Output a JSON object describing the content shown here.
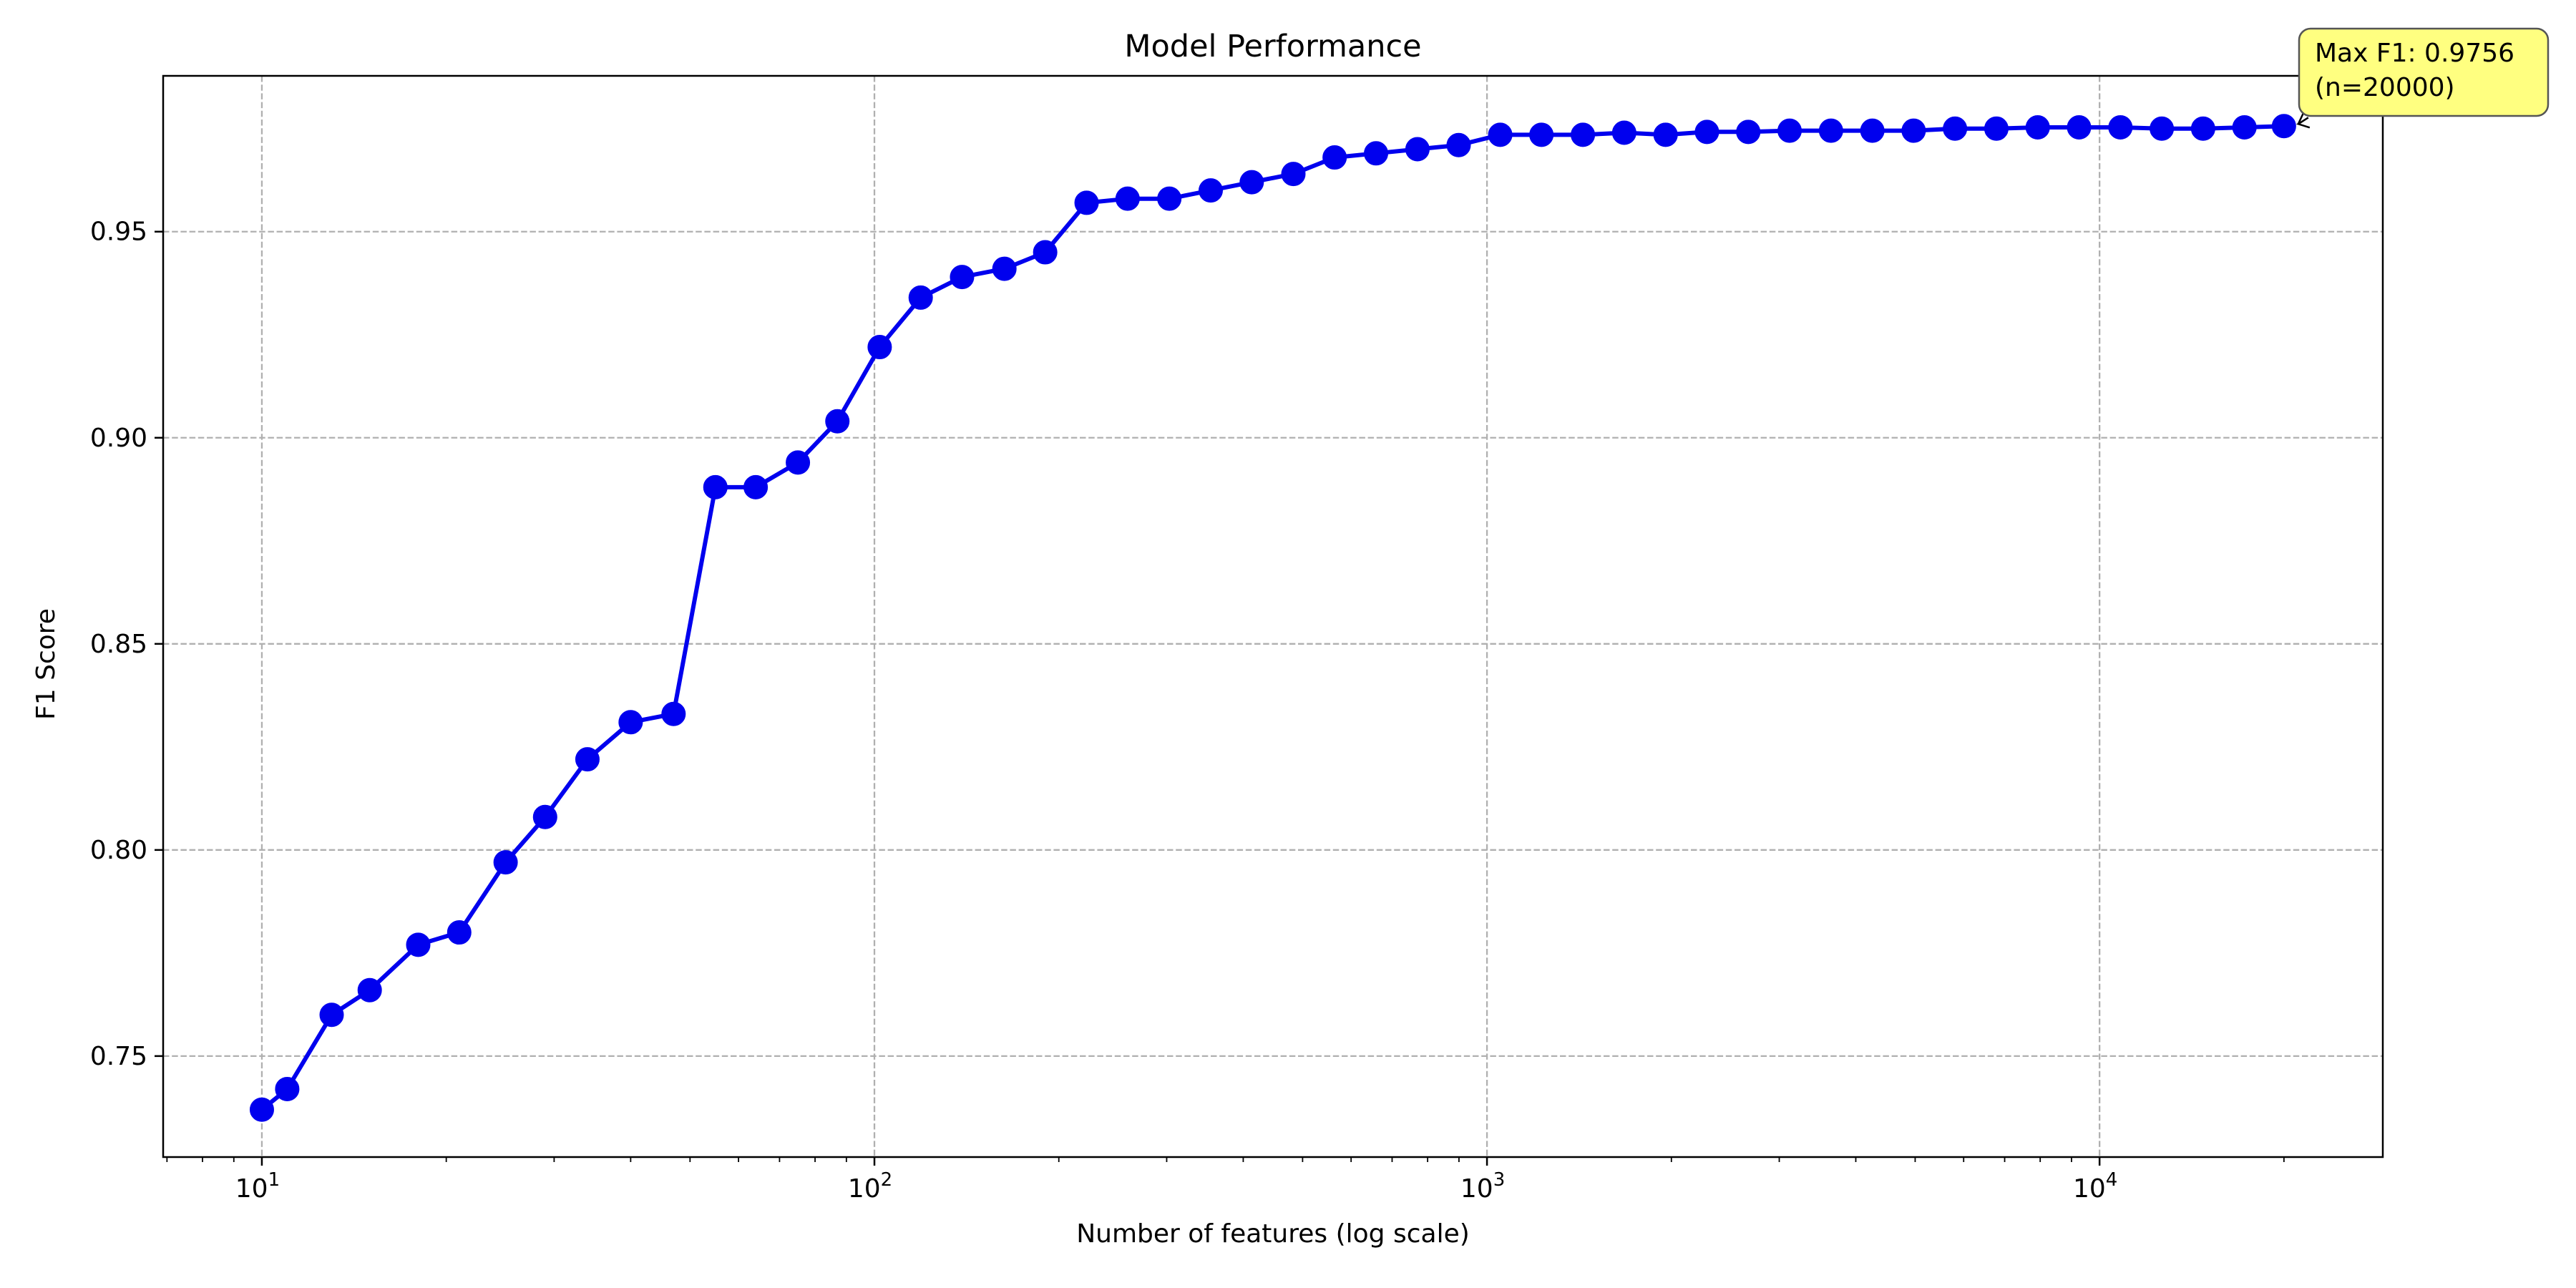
{
  "chart_data": {
    "type": "line",
    "title": "Model Performance",
    "xlabel": "Number of features (log scale)",
    "ylabel": "F1 Score",
    "x_scale": "log",
    "xlim": [
      6.9,
      29000
    ],
    "ylim": [
      0.7255,
      0.9878
    ],
    "grid": true,
    "y_ticks": [
      "0.75",
      "0.80",
      "0.85",
      "0.90",
      "0.95"
    ],
    "x_ticks": [
      {
        "base": "10",
        "exp": "1"
      },
      {
        "base": "10",
        "exp": "2"
      },
      {
        "base": "10",
        "exp": "3"
      },
      {
        "base": "10",
        "exp": "4"
      }
    ],
    "series": [
      {
        "color": "#0000ee",
        "marker": "circle",
        "x": [
          10,
          11,
          13,
          15,
          18,
          21,
          25,
          29,
          34,
          40,
          47,
          55,
          64,
          75,
          87,
          102,
          119,
          139,
          163,
          190,
          222,
          259,
          303,
          354,
          413,
          483,
          564,
          659,
          770,
          899,
          1051,
          1227,
          1434,
          1675,
          1957,
          2286,
          2670,
          3119,
          3644,
          4257,
          4972,
          5808,
          6785,
          7926,
          9259,
          10816,
          12635,
          14759,
          17241,
          20000
        ],
        "y": [
          0.737,
          0.742,
          0.76,
          0.766,
          0.777,
          0.78,
          0.797,
          0.808,
          0.822,
          0.831,
          0.833,
          0.888,
          0.888,
          0.894,
          0.904,
          0.922,
          0.934,
          0.939,
          0.941,
          0.945,
          0.957,
          0.958,
          0.958,
          0.96,
          0.962,
          0.964,
          0.968,
          0.969,
          0.97,
          0.971,
          0.9735,
          0.9735,
          0.9735,
          0.974,
          0.9735,
          0.9742,
          0.9742,
          0.9745,
          0.9745,
          0.9745,
          0.9745,
          0.975,
          0.975,
          0.9753,
          0.9753,
          0.9753,
          0.975,
          0.975,
          0.9753,
          0.9756
        ]
      }
    ],
    "annotation": {
      "text_line1": "Max F1: 0.9756",
      "text_line2": "(n=20000)",
      "x": 20000,
      "y": 0.9756,
      "box_color": "#ffff80"
    }
  }
}
